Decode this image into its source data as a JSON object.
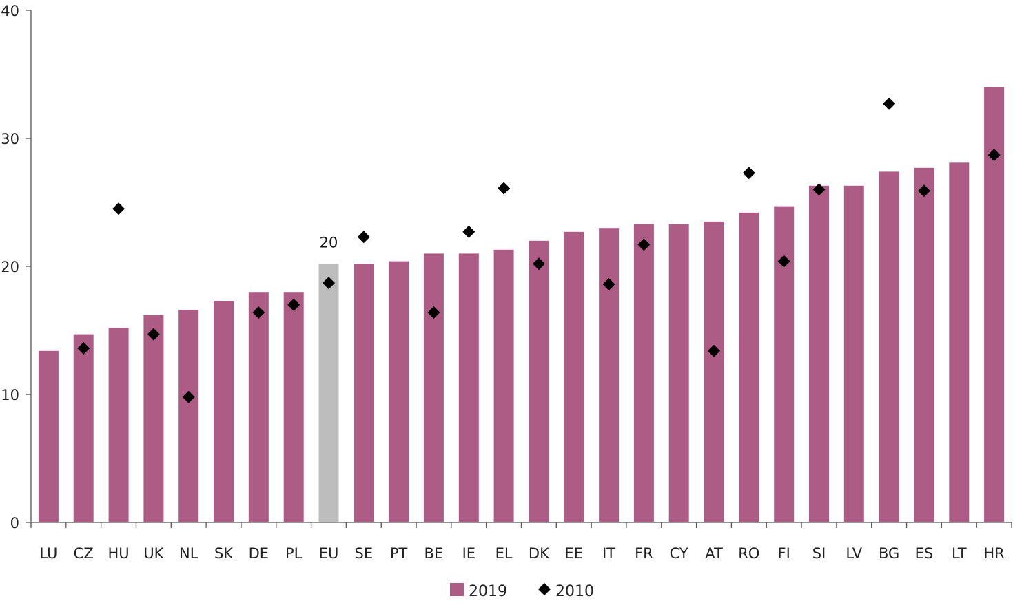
{
  "chart_data": {
    "type": "bar",
    "categories": [
      "LU",
      "CZ",
      "HU",
      "UK",
      "NL",
      "SK",
      "DE",
      "PL",
      "EU",
      "SE",
      "PT",
      "BE",
      "IE",
      "EL",
      "DK",
      "EE",
      "IT",
      "FR",
      "CY",
      "AT",
      "RO",
      "FI",
      "SI",
      "LV",
      "BG",
      "ES",
      "LT",
      "HR"
    ],
    "series": [
      {
        "name": "2019",
        "kind": "bar",
        "color": "#ad5c86",
        "highlight": {
          "category": "EU",
          "color": "#bdbdbd",
          "label": "20"
        },
        "values": [
          13.4,
          14.7,
          15.2,
          16.2,
          16.6,
          17.3,
          18.0,
          18.0,
          20.2,
          20.2,
          20.4,
          21.0,
          21.0,
          21.3,
          22.0,
          22.7,
          23.0,
          23.3,
          23.3,
          23.5,
          24.2,
          24.7,
          26.3,
          26.3,
          27.4,
          27.7,
          28.1,
          34.0
        ]
      },
      {
        "name": "2010",
        "kind": "marker",
        "marker": "diamond",
        "color": "#000000",
        "values": [
          null,
          13.6,
          24.5,
          14.7,
          9.8,
          null,
          16.4,
          17.0,
          18.7,
          22.3,
          null,
          16.4,
          22.7,
          26.1,
          20.2,
          null,
          18.6,
          21.7,
          null,
          13.4,
          27.3,
          20.4,
          26.0,
          null,
          32.7,
          25.9,
          null,
          28.7
        ]
      }
    ],
    "xlabel": "",
    "ylabel": "",
    "ylim": [
      0,
      40
    ],
    "yticks": [
      "0",
      "10",
      "20",
      "30",
      "40"
    ],
    "grid": false,
    "legend": "bottom"
  }
}
